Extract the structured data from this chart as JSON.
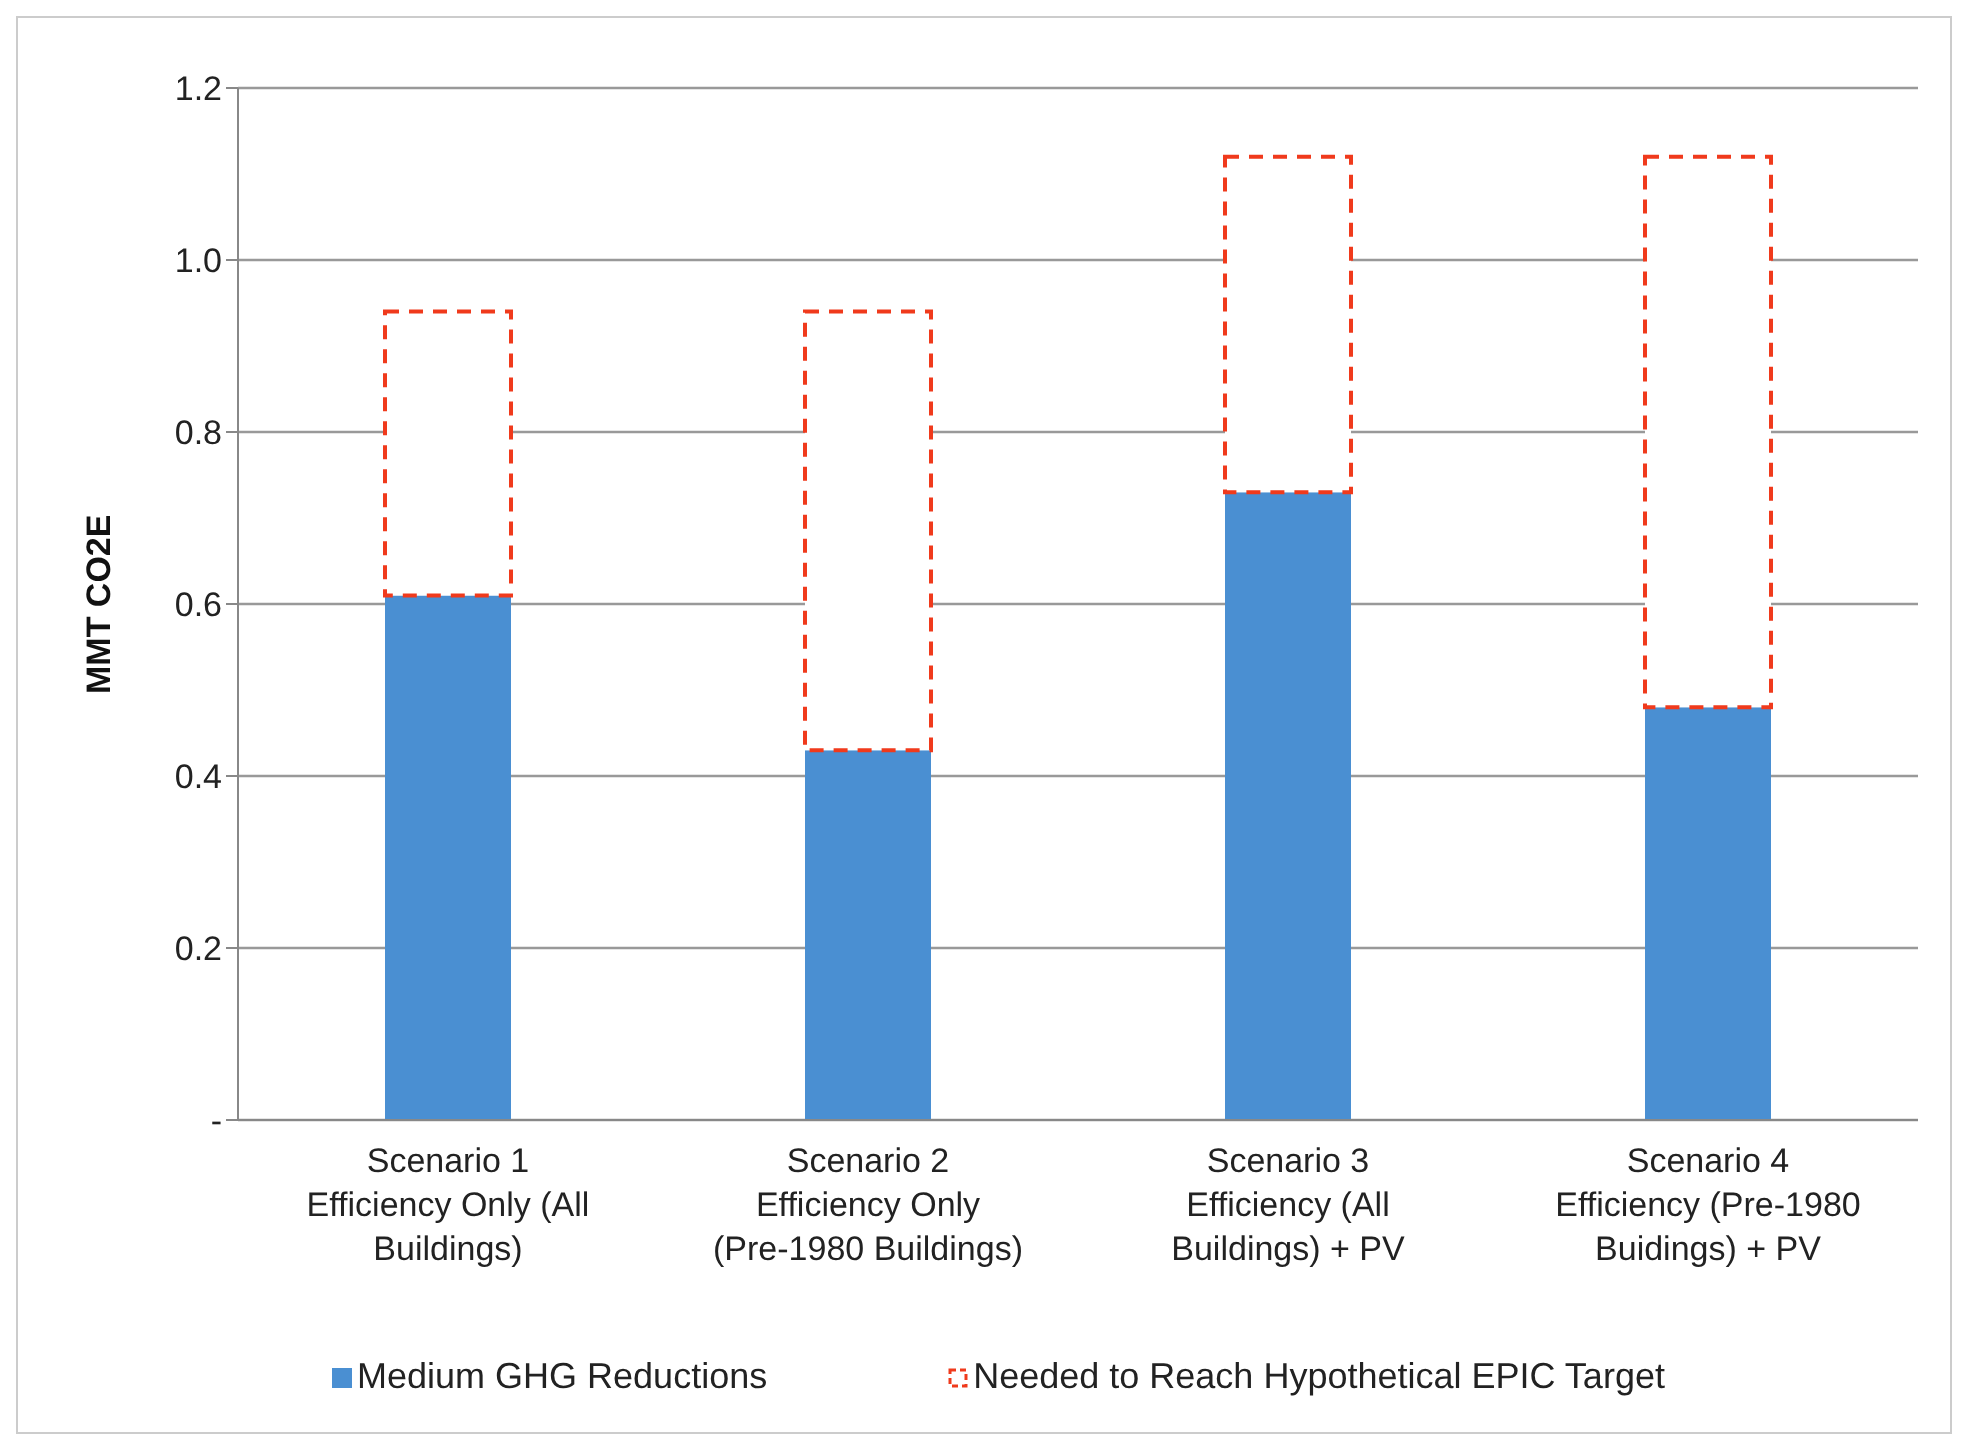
{
  "chart_data": {
    "type": "bar",
    "stacked": true,
    "ylabel": "MMT CO2E",
    "categories": [
      "Scenario 1 Efficiency Only (All Buildings)",
      "Scenario 2 Efficiency Only (Pre-1980 Buildings)",
      "Scenario 3 Efficiency (All Buildings) + PV",
      "Scenario 4 Efficiency (Pre-1980 Buidings) + PV"
    ],
    "series": [
      {
        "name": "Medium GHG Reductions",
        "color": "#4a8fd2",
        "values": [
          0.61,
          0.43,
          0.73,
          0.48
        ]
      },
      {
        "name": "Needed to Reach Hypothetical EPIC Target",
        "color": "#f03a1c",
        "line_style": "dashed",
        "values": [
          0.33,
          0.51,
          0.39,
          0.64
        ]
      }
    ],
    "ylim": [
      0,
      1.2
    ],
    "yticks": [
      {
        "value": 0,
        "label": "-"
      },
      0.2,
      0.4,
      0.6,
      0.8,
      {
        "value": 1,
        "label": "1.0"
      },
      1.2
    ],
    "grid": "y",
    "legend": "bottom"
  }
}
